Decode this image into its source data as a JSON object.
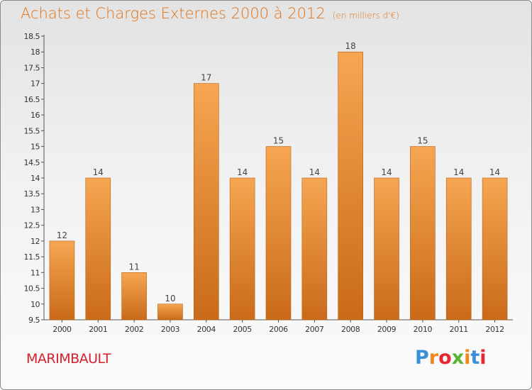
{
  "title": "Achats et Charges Externes 2000 à 2012",
  "unit": "(en milliers d'€)",
  "place_name": "MARIMBAULT",
  "logo": {
    "text": "Proxiti",
    "letter_colors": [
      "#3b8fd6",
      "#f0891b",
      "#e8262f",
      "#5ab533",
      "#f0891b",
      "#3b8fd6",
      "#e8262f"
    ]
  },
  "colors": {
    "title": "#e07318",
    "place": "#d7202c",
    "bar_top": "#f6a652",
    "bar_bottom": "#c96a1a"
  },
  "chart_data": {
    "type": "bar",
    "categories": [
      "2000",
      "2001",
      "2002",
      "2003",
      "2004",
      "2005",
      "2006",
      "2007",
      "2008",
      "2009",
      "2010",
      "2011",
      "2012"
    ],
    "values": [
      12,
      14,
      11,
      10,
      17,
      14,
      15,
      14,
      18,
      14,
      15,
      14,
      14
    ],
    "ylim": [
      9.5,
      18.5
    ],
    "yticks": [
      "9.5",
      "10",
      "10.5",
      "11",
      "11.5",
      "12",
      "12.5",
      "13",
      "13.5",
      "14",
      "14.5",
      "15",
      "15.5",
      "16",
      "16.5",
      "17",
      "17.5",
      "18",
      "18.5"
    ],
    "grid": false
  }
}
